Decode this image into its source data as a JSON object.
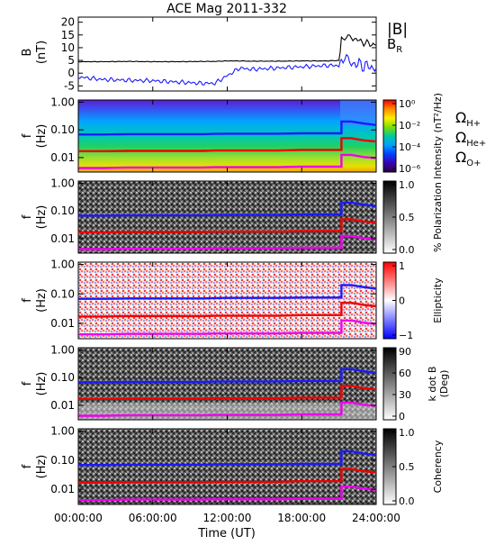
{
  "title": "ACE Mag 2011-332",
  "xaxis": {
    "label": "Time (UT)",
    "ticks": [
      "00:00:00",
      "06:00:00",
      "12:00:00",
      "18:00:00",
      "24:00:00"
    ],
    "range_hours": [
      0,
      24
    ]
  },
  "panels": [
    {
      "id": "bfield",
      "ylabel_line1": "B",
      "ylabel_line2": "(nT)",
      "yticks": [
        "20",
        "15",
        "10",
        "5",
        "0",
        "-5"
      ],
      "ylim": [
        -7,
        22
      ],
      "legend": [
        "|B|",
        "B_R"
      ]
    },
    {
      "id": "intensity",
      "ylabel_line1": "f",
      "ylabel_line2": "(Hz)",
      "yticks": [
        "1.00",
        "0.10",
        "0.01"
      ],
      "cbar_label": "Intensity (nT²/Hz)",
      "cbar_ticks": [
        "10⁰",
        "10⁻²",
        "10⁻⁴",
        "10⁻⁶"
      ],
      "cbar_colors": [
        "#f00000",
        "#ff8800",
        "#ffee00",
        "#7ce000",
        "#00c8a0",
        "#00a0ff",
        "#0040ff",
        "#3a00b0",
        "#2a0040"
      ]
    },
    {
      "id": "polarization",
      "ylabel_line1": "f",
      "ylabel_line2": "(Hz)",
      "yticks": [
        "1.00",
        "0.10",
        "0.01"
      ],
      "cbar_label": "% Polarization",
      "cbar_ticks": [
        "1.0",
        "0.5",
        "0.0"
      ],
      "cbar_colors": [
        "#000000",
        "#ffffff"
      ]
    },
    {
      "id": "ellipticity",
      "ylabel_line1": "f",
      "ylabel_line2": "(Hz)",
      "yticks": [
        "1.00",
        "0.10",
        "0.01"
      ],
      "cbar_label": "Ellipticity",
      "cbar_ticks": [
        "1",
        "0",
        "−1"
      ],
      "cbar_colors": [
        "#ff0000",
        "#ffffff",
        "#0000ff"
      ]
    },
    {
      "id": "kdotb",
      "ylabel_line1": "f",
      "ylabel_line2": "(Hz)",
      "yticks": [
        "1.00",
        "0.10",
        "0.01"
      ],
      "cbar_label": "k dot B (Deg)",
      "cbar_label_line1": "k dot B",
      "cbar_label_line2": "(Deg)",
      "cbar_ticks": [
        "90",
        "60",
        "30",
        "0"
      ],
      "cbar_colors": [
        "#000000",
        "#ffffff"
      ]
    },
    {
      "id": "coherency",
      "ylabel_line1": "f",
      "ylabel_line2": "(Hz)",
      "yticks": [
        "1.00",
        "0.10",
        "0.01"
      ],
      "cbar_label": "Coherency",
      "cbar_ticks": [
        "1.0",
        "0.5",
        "0.0"
      ],
      "cbar_colors": [
        "#000000",
        "#ffffff"
      ]
    }
  ],
  "gyro_legend": [
    {
      "symbol": "Ω",
      "sub": "H+",
      "color": "#1a1aff"
    },
    {
      "symbol": "Ω",
      "sub": "He+",
      "color": "#ee0000"
    },
    {
      "symbol": "Ω",
      "sub": "O+",
      "color": "#ee00ee"
    }
  ],
  "colors": {
    "babs": "#000000",
    "br": "#1a1aff",
    "hplus": "#1a1aff",
    "heplus": "#ee0000",
    "oplus": "#ee00ee"
  },
  "chart_data": {
    "type": "line",
    "title": "ACE Mag 2011-332",
    "xlabel": "Time (UT)",
    "x_hours": [
      0,
      2,
      4,
      6,
      8,
      10,
      11,
      12,
      13,
      14,
      16,
      18,
      20,
      21,
      21.2,
      22,
      23,
      24
    ],
    "series": [
      {
        "name": "|B|",
        "values": [
          4.5,
          4.5,
          4.6,
          4.5,
          4.5,
          4.6,
          4.6,
          4.8,
          4.8,
          4.7,
          4.7,
          4.8,
          4.8,
          5,
          13,
          14,
          12,
          11
        ]
      },
      {
        "name": "B_R",
        "values": [
          -1.5,
          -2.5,
          -2.8,
          -3,
          -3.5,
          -4,
          -4,
          -1,
          2,
          1.5,
          2,
          2.5,
          3,
          3,
          5,
          4,
          3,
          2
        ]
      },
      {
        "name": "ΩH+",
        "panels": "frequency panels",
        "values_hz": [
          0.068,
          0.068,
          0.07,
          0.07,
          0.07,
          0.07,
          0.072,
          0.073,
          0.073,
          0.073,
          0.073,
          0.075,
          0.075,
          0.075,
          0.2,
          0.2,
          0.17,
          0.15
        ]
      },
      {
        "name": "ΩHe+",
        "panels": "frequency panels",
        "values_hz": [
          0.017,
          0.017,
          0.0175,
          0.0175,
          0.0175,
          0.0175,
          0.018,
          0.018,
          0.018,
          0.018,
          0.018,
          0.019,
          0.019,
          0.019,
          0.05,
          0.05,
          0.042,
          0.038
        ]
      },
      {
        "name": "ΩO+",
        "panels": "frequency panels",
        "values_hz": [
          0.0042,
          0.0042,
          0.0044,
          0.0044,
          0.0044,
          0.0044,
          0.0045,
          0.0045,
          0.0045,
          0.0045,
          0.0045,
          0.0047,
          0.0047,
          0.0047,
          0.0125,
          0.0125,
          0.0105,
          0.0095
        ]
      }
    ],
    "b_ylim": [
      -7,
      22
    ],
    "f_ylim_hz": [
      0.003,
      1.2
    ],
    "f_scale": "log"
  }
}
